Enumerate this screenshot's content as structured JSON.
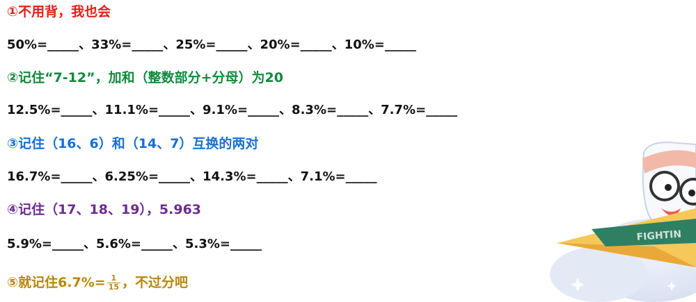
{
  "sections": [
    {
      "heading": "①不用背，我也会",
      "color": "#e0201a",
      "equation": "50%=_____、33%=_____、25%=_____、20%=_____、10%=_____"
    },
    {
      "heading": "②记住“7-12”，加和（整数部分+分母）为20",
      "color": "#118a3c",
      "equation": "12.5%=_____、11.1%=_____、9.1%=_____、8.3%=_____、7.7%=_____"
    },
    {
      "heading": "③记住（16、6）和（14、7）互换的两对",
      "color": "#1670d4",
      "equation": "16.7%=_____、6.25%=_____、14.3%=_____、7.1%=_____"
    },
    {
      "heading": "④记住（17、18、19），5.963",
      "color": "#6b2d8f",
      "equation": "5.9%=_____、5.6%=_____、5.3%=_____"
    }
  ],
  "final": {
    "prefix": "⑤就记住6.7%=",
    "frac_num": "1",
    "frac_den": "15",
    "suffix": "，不过分吧",
    "color": "#b8860b"
  },
  "mascot": {
    "icon": "paper-plane-mascot-icon",
    "banner_text": "FIGHTIN"
  }
}
